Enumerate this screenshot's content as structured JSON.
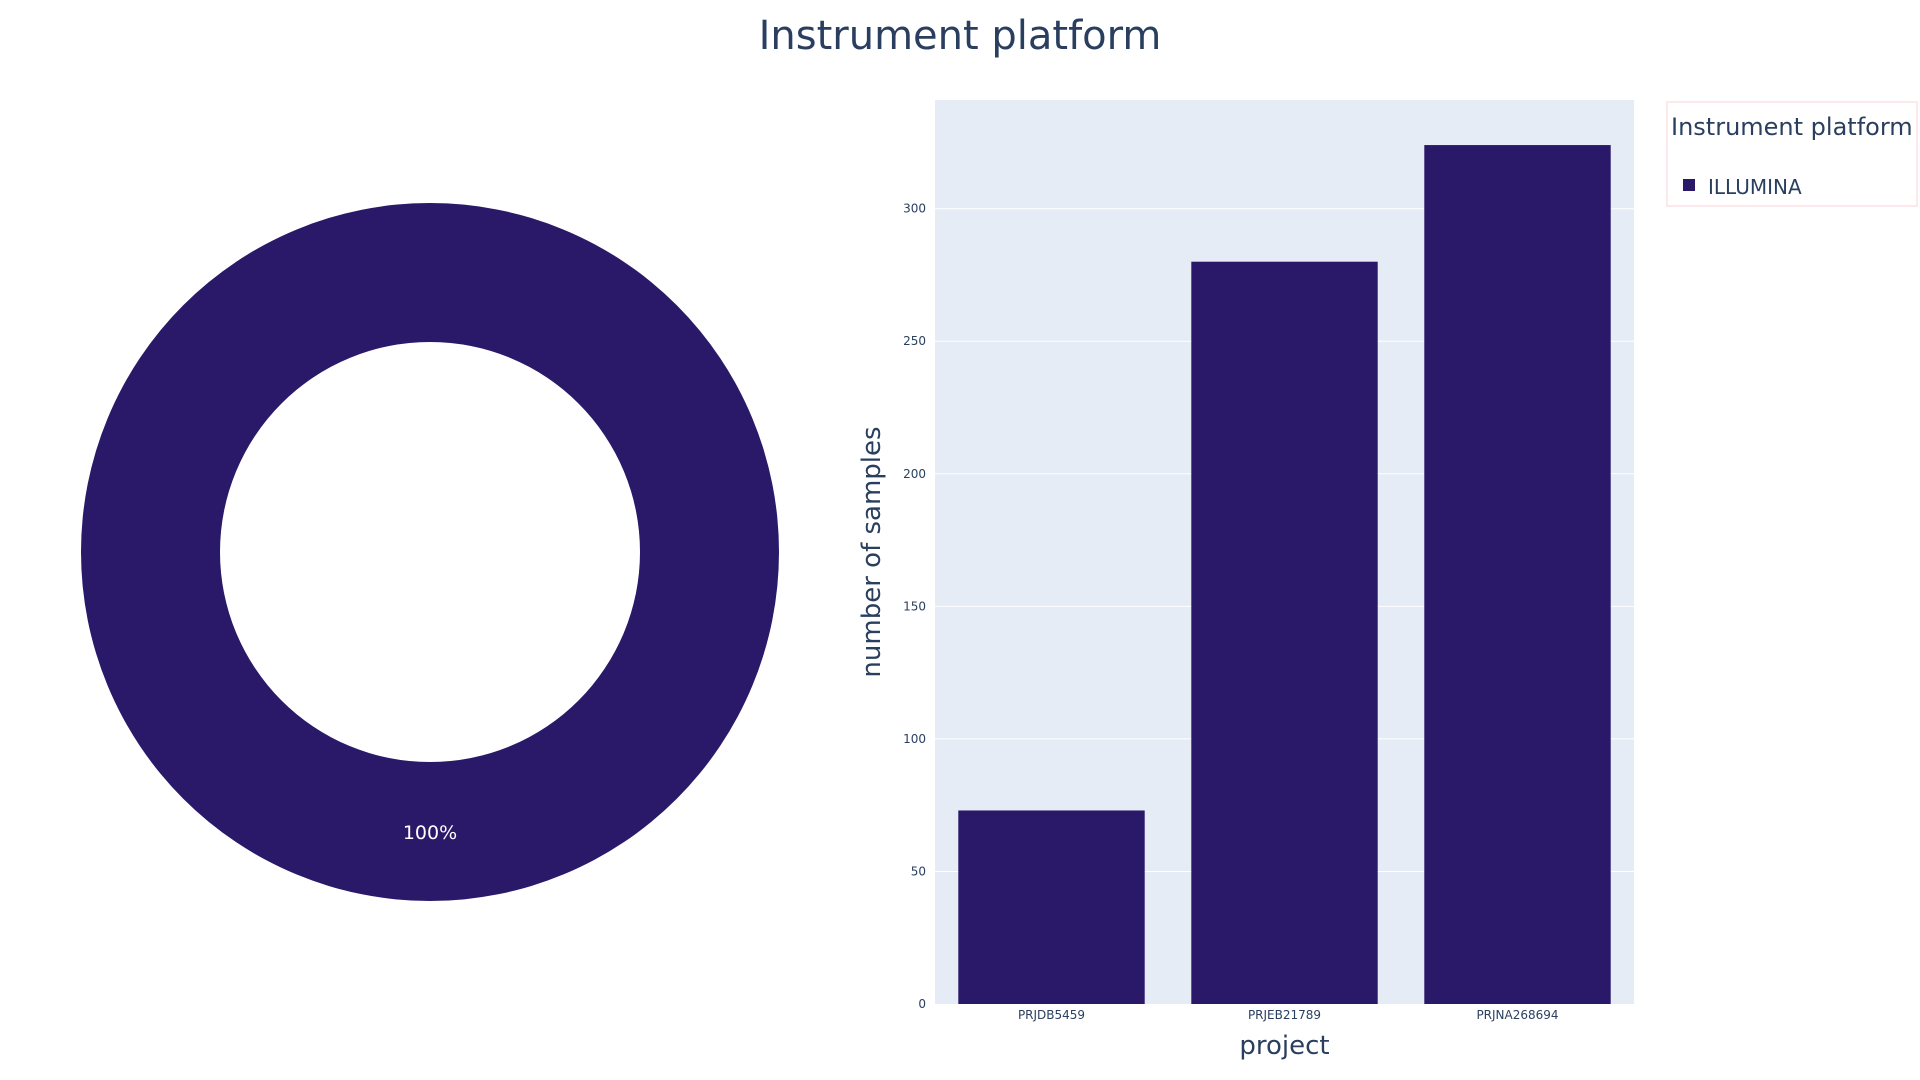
{
  "title": "Instrument platform",
  "colors": {
    "series": "#2a1869",
    "plot_bg": "#e5ecf6",
    "text": "#2a3f5f",
    "grid": "#ffffff",
    "legend_border": "#fde8ec"
  },
  "legend": {
    "title": "Instrument platform",
    "placement": "top-right",
    "items": [
      "ILLUMINA"
    ]
  },
  "chart_data": [
    {
      "type": "pie",
      "hole": true,
      "labels": [
        "ILLUMINA"
      ],
      "values": [
        100
      ],
      "text_labels": [
        "100%"
      ]
    },
    {
      "type": "bar",
      "categories": [
        "PRJDB5459",
        "PRJEB21789",
        "PRJNA268694"
      ],
      "series": [
        {
          "name": "ILLUMINA",
          "values": [
            73,
            280,
            324
          ]
        }
      ],
      "xlabel": "project",
      "ylabel": "number of samples",
      "ylim": [
        0,
        341
      ],
      "yticks": [
        0,
        50,
        100,
        150,
        200,
        250,
        300
      ],
      "grid": true
    }
  ]
}
